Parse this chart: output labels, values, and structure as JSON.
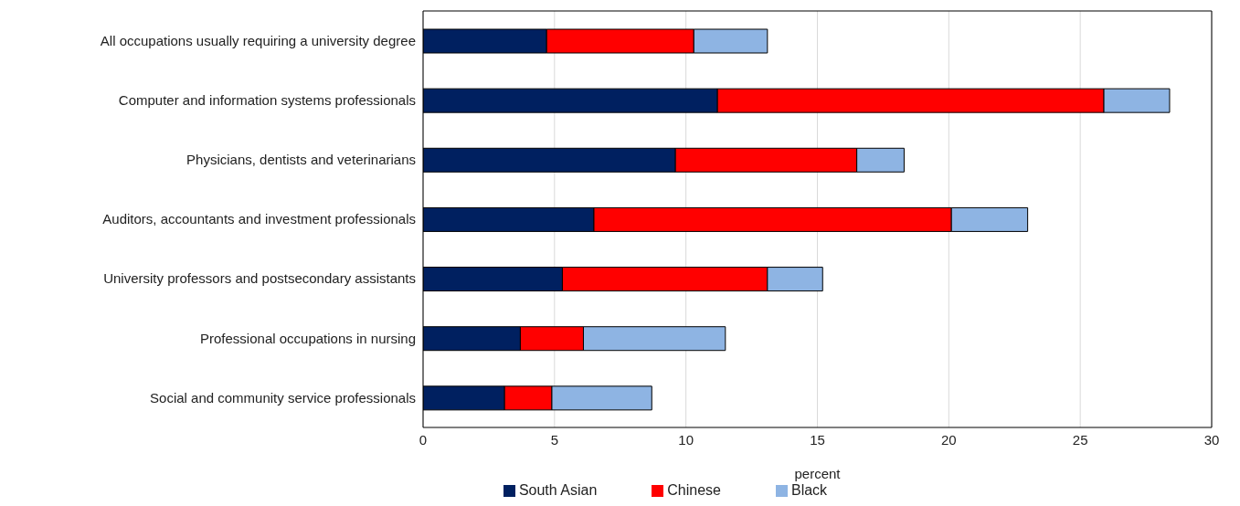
{
  "chart_data": {
    "type": "bar",
    "orientation": "horizontal",
    "stacked": true,
    "xlabel": "percent",
    "categories": [
      "All occupations usually requiring a university degree",
      "Computer and information systems professionals",
      "Physicians, dentists and veterinarians",
      "Auditors, accountants and investment professionals",
      "University professors and postsecondary assistants",
      "Professional occupations in nursing",
      "Social and community service professionals"
    ],
    "series": [
      {
        "name": "South Asian",
        "color": "#002060",
        "values": [
          4.7,
          11.2,
          9.6,
          6.5,
          5.3,
          3.7,
          3.1
        ]
      },
      {
        "name": "Chinese",
        "color": "#ff0000",
        "values": [
          5.6,
          14.7,
          6.9,
          13.6,
          7.8,
          2.4,
          1.8
        ]
      },
      {
        "name": "Black",
        "color": "#8eb4e3",
        "values": [
          2.8,
          2.5,
          1.8,
          2.9,
          2.1,
          5.4,
          3.8
        ]
      }
    ],
    "xlim": [
      0,
      30
    ],
    "xticks": [
      0,
      5,
      10,
      15,
      20,
      25,
      30
    ],
    "grid": "x",
    "legend": "bottom"
  }
}
